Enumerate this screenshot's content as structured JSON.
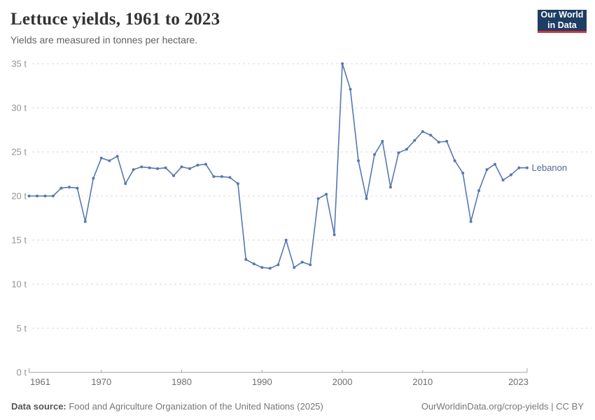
{
  "header": {
    "title": "Lettuce yields, 1961 to 2023",
    "subtitle": "Yields are measured in tonnes per hectare.",
    "logo_line1": "Our World",
    "logo_line2": "in Data"
  },
  "colors": {
    "series_line": "#5678b0",
    "series_label": "#4d6aa0",
    "gridline": "#dadada",
    "axis": "#a1a1a1",
    "y_tick_text": "#949494",
    "x_tick_text": "#6e6e6e",
    "logo_bg": "#1d3d63",
    "logo_accent": "#cb3438"
  },
  "chart_data": {
    "type": "line",
    "title": "Lettuce yields, 1961 to 2023",
    "ylabel": "tonnes per hectare",
    "xlabel": "",
    "xlim": [
      1961,
      2023
    ],
    "ylim": [
      0,
      35
    ],
    "grid": "horizontal-dashed",
    "legend_position": "end-of-line-label",
    "x_ticks": [
      1961,
      1970,
      1980,
      1990,
      2000,
      2010,
      2023
    ],
    "y_ticks": [
      0,
      5,
      10,
      15,
      20,
      25,
      30,
      35
    ],
    "y_tick_suffix": " t",
    "series": [
      {
        "name": "Lebanon",
        "x": [
          1961,
          1962,
          1963,
          1964,
          1965,
          1966,
          1967,
          1968,
          1969,
          1970,
          1971,
          1972,
          1973,
          1974,
          1975,
          1976,
          1977,
          1978,
          1979,
          1980,
          1981,
          1982,
          1983,
          1984,
          1985,
          1986,
          1987,
          1988,
          1989,
          1990,
          1991,
          1992,
          1993,
          1994,
          1995,
          1996,
          1997,
          1998,
          1999,
          2000,
          2001,
          2002,
          2003,
          2004,
          2005,
          2006,
          2007,
          2008,
          2009,
          2010,
          2011,
          2012,
          2013,
          2014,
          2015,
          2016,
          2017,
          2018,
          2019,
          2020,
          2021,
          2022,
          2023
        ],
        "values": [
          20.0,
          20.0,
          20.0,
          20.0,
          20.9,
          21.0,
          20.9,
          17.1,
          22.0,
          24.3,
          24.0,
          24.5,
          21.4,
          23.0,
          23.3,
          23.2,
          23.1,
          23.2,
          22.3,
          23.3,
          23.1,
          23.5,
          23.6,
          22.2,
          22.2,
          22.1,
          21.4,
          12.8,
          12.3,
          11.9,
          11.8,
          12.2,
          15.0,
          11.9,
          12.5,
          12.2,
          19.7,
          20.2,
          15.6,
          35.0,
          32.1,
          24.0,
          19.7,
          24.7,
          26.2,
          21.0,
          24.9,
          25.3,
          26.3,
          27.3,
          26.9,
          26.1,
          26.2,
          24.0,
          22.6,
          17.1,
          20.6,
          23.0,
          23.6,
          21.8,
          22.4,
          23.2,
          23.2
        ]
      }
    ]
  },
  "footer": {
    "source_label": "Data source:",
    "source_text": " Food and Agriculture Organization of the United Nations (2025)",
    "right_text": "OurWorldinData.org/crop-yields | CC BY"
  }
}
